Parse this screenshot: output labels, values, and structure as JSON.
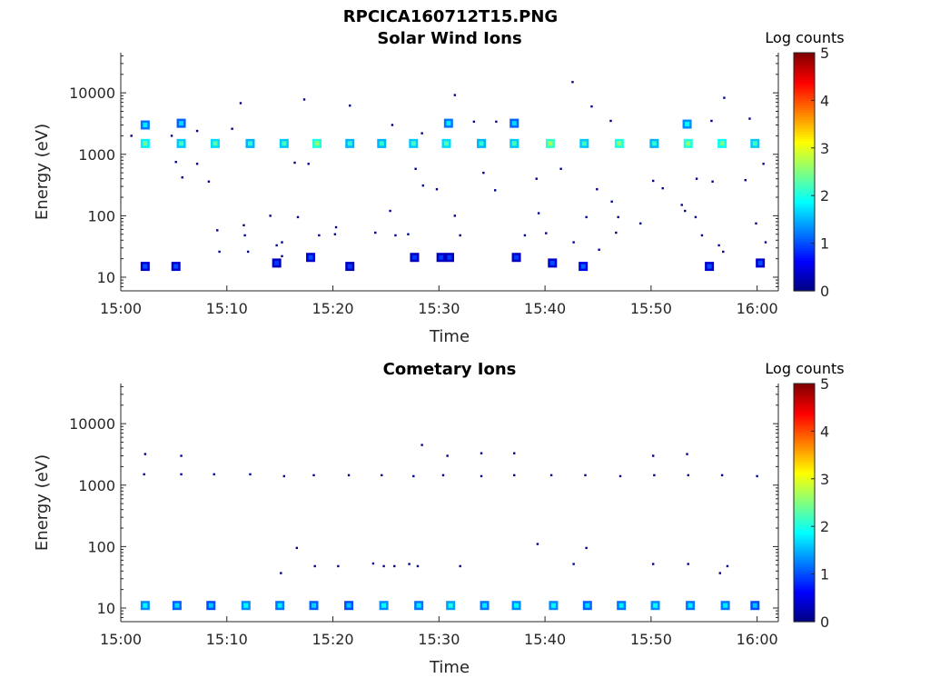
{
  "figure": {
    "filename": "RPCICA160712T15.PNG"
  },
  "colorbar": {
    "label": "Log counts",
    "range": [
      0,
      5
    ],
    "ticks": [
      "0",
      "1",
      "2",
      "3",
      "4",
      "5"
    ],
    "colormap": "jet"
  },
  "chart_data": [
    {
      "type": "heatmap",
      "title": "Solar Wind Ions",
      "xlabel": "Time",
      "ylabel": "Energy (eV)",
      "yscale": "log",
      "xlim": [
        "15:00",
        "16:02"
      ],
      "ylim": [
        6,
        45000
      ],
      "xticks": [
        "15:00",
        "15:10",
        "15:20",
        "15:30",
        "15:40",
        "15:50",
        "16:00"
      ],
      "yticks": [
        "10",
        "100",
        "1000",
        "10000"
      ],
      "cells": [
        {
          "t": 2.3,
          "e": 1500,
          "v": 1.8
        },
        {
          "t": 2.3,
          "e": 3000,
          "v": 1.2
        },
        {
          "t": 5.7,
          "e": 1500,
          "v": 1.6
        },
        {
          "t": 5.7,
          "e": 3200,
          "v": 1.1
        },
        {
          "t": 8.9,
          "e": 1500,
          "v": 1.7
        },
        {
          "t": 12.2,
          "e": 1500,
          "v": 1.5
        },
        {
          "t": 15.4,
          "e": 1500,
          "v": 1.6
        },
        {
          "t": 18.5,
          "e": 1500,
          "v": 2.0
        },
        {
          "t": 21.6,
          "e": 1500,
          "v": 1.5
        },
        {
          "t": 24.6,
          "e": 1500,
          "v": 1.5
        },
        {
          "t": 27.6,
          "e": 1500,
          "v": 1.6
        },
        {
          "t": 30.7,
          "e": 1500,
          "v": 1.7
        },
        {
          "t": 30.9,
          "e": 3200,
          "v": 1.2
        },
        {
          "t": 34.0,
          "e": 1500,
          "v": 1.5
        },
        {
          "t": 37.1,
          "e": 1500,
          "v": 1.6
        },
        {
          "t": 37.1,
          "e": 3200,
          "v": 1.1
        },
        {
          "t": 40.5,
          "e": 1500,
          "v": 2.1
        },
        {
          "t": 43.7,
          "e": 1500,
          "v": 1.6
        },
        {
          "t": 47.0,
          "e": 1500,
          "v": 2.0
        },
        {
          "t": 50.3,
          "e": 1500,
          "v": 1.5
        },
        {
          "t": 53.5,
          "e": 1500,
          "v": 2.0
        },
        {
          "t": 53.4,
          "e": 3100,
          "v": 1.3
        },
        {
          "t": 56.7,
          "e": 1500,
          "v": 1.9
        },
        {
          "t": 59.8,
          "e": 1500,
          "v": 1.6
        },
        {
          "t": 2.3,
          "e": 15,
          "v": 0.4
        },
        {
          "t": 5.2,
          "e": 15,
          "v": 0.4
        },
        {
          "t": 14.7,
          "e": 17,
          "v": 0.3
        },
        {
          "t": 17.9,
          "e": 21,
          "v": 0.4
        },
        {
          "t": 21.6,
          "e": 15,
          "v": 0.3
        },
        {
          "t": 27.7,
          "e": 21,
          "v": 0.3
        },
        {
          "t": 30.2,
          "e": 21,
          "v": 0.3
        },
        {
          "t": 31.0,
          "e": 21,
          "v": 0.3
        },
        {
          "t": 37.3,
          "e": 21,
          "v": 0.3
        },
        {
          "t": 40.7,
          "e": 17,
          "v": 0.4
        },
        {
          "t": 43.6,
          "e": 15,
          "v": 0.5
        },
        {
          "t": 55.5,
          "e": 15,
          "v": 0.4
        },
        {
          "t": 60.3,
          "e": 17,
          "v": 0.4
        }
      ],
      "points": [
        {
          "t": 1.0,
          "e": 2000
        },
        {
          "t": 4.8,
          "e": 2000
        },
        {
          "t": 7.2,
          "e": 2400
        },
        {
          "t": 10.5,
          "e": 2600
        },
        {
          "t": 11.3,
          "e": 6800
        },
        {
          "t": 17.3,
          "e": 7800
        },
        {
          "t": 21.6,
          "e": 6200
        },
        {
          "t": 25.6,
          "e": 3000
        },
        {
          "t": 28.4,
          "e": 2200
        },
        {
          "t": 31.5,
          "e": 9200
        },
        {
          "t": 33.3,
          "e": 3400
        },
        {
          "t": 35.4,
          "e": 3400
        },
        {
          "t": 42.6,
          "e": 15000
        },
        {
          "t": 44.4,
          "e": 6000
        },
        {
          "t": 46.2,
          "e": 3500
        },
        {
          "t": 55.7,
          "e": 3500
        },
        {
          "t": 56.9,
          "e": 8300
        },
        {
          "t": 59.3,
          "e": 3800
        },
        {
          "t": 5.2,
          "e": 750
        },
        {
          "t": 5.8,
          "e": 420
        },
        {
          "t": 8.3,
          "e": 360
        },
        {
          "t": 7.2,
          "e": 700
        },
        {
          "t": 16.4,
          "e": 730
        },
        {
          "t": 17.7,
          "e": 700
        },
        {
          "t": 27.8,
          "e": 580
        },
        {
          "t": 28.5,
          "e": 310
        },
        {
          "t": 29.8,
          "e": 270
        },
        {
          "t": 34.2,
          "e": 500
        },
        {
          "t": 35.3,
          "e": 260
        },
        {
          "t": 39.2,
          "e": 400
        },
        {
          "t": 41.5,
          "e": 580
        },
        {
          "t": 44.9,
          "e": 270
        },
        {
          "t": 46.3,
          "e": 170
        },
        {
          "t": 50.2,
          "e": 370
        },
        {
          "t": 51.1,
          "e": 280
        },
        {
          "t": 52.9,
          "e": 150
        },
        {
          "t": 54.3,
          "e": 400
        },
        {
          "t": 55.8,
          "e": 360
        },
        {
          "t": 58.9,
          "e": 380
        },
        {
          "t": 60.6,
          "e": 700
        },
        {
          "t": 14.1,
          "e": 100
        },
        {
          "t": 16.7,
          "e": 95
        },
        {
          "t": 25.4,
          "e": 120
        },
        {
          "t": 31.5,
          "e": 100
        },
        {
          "t": 39.4,
          "e": 110
        },
        {
          "t": 43.9,
          "e": 95
        },
        {
          "t": 46.9,
          "e": 95
        },
        {
          "t": 49.0,
          "e": 75
        },
        {
          "t": 53.2,
          "e": 120
        },
        {
          "t": 54.2,
          "e": 95
        },
        {
          "t": 59.9,
          "e": 75
        },
        {
          "t": 9.1,
          "e": 58
        },
        {
          "t": 11.6,
          "e": 70
        },
        {
          "t": 20.3,
          "e": 65
        },
        {
          "t": 11.7,
          "e": 48
        },
        {
          "t": 14.7,
          "e": 33
        },
        {
          "t": 15.2,
          "e": 37
        },
        {
          "t": 18.7,
          "e": 48
        },
        {
          "t": 20.2,
          "e": 50
        },
        {
          "t": 24.0,
          "e": 53
        },
        {
          "t": 25.9,
          "e": 48
        },
        {
          "t": 27.1,
          "e": 50
        },
        {
          "t": 32.0,
          "e": 48
        },
        {
          "t": 38.1,
          "e": 48
        },
        {
          "t": 40.1,
          "e": 52
        },
        {
          "t": 42.7,
          "e": 37
        },
        {
          "t": 45.1,
          "e": 28
        },
        {
          "t": 46.7,
          "e": 53
        },
        {
          "t": 54.8,
          "e": 48
        },
        {
          "t": 9.3,
          "e": 26
        },
        {
          "t": 12.0,
          "e": 26
        },
        {
          "t": 15.2,
          "e": 22
        },
        {
          "t": 56.4,
          "e": 33
        },
        {
          "t": 56.8,
          "e": 26
        },
        {
          "t": 60.8,
          "e": 37
        }
      ]
    },
    {
      "type": "heatmap",
      "title": "Cometary Ions",
      "xlabel": "Time",
      "ylabel": "Energy (eV)",
      "yscale": "log",
      "xlim": [
        "15:00",
        "16:02"
      ],
      "ylim": [
        6,
        45000
      ],
      "xticks": [
        "15:00",
        "15:10",
        "15:20",
        "15:30",
        "15:40",
        "15:50",
        "16:00"
      ],
      "yticks": [
        "10",
        "100",
        "1000",
        "10000"
      ],
      "cells": [
        {
          "t": 2.3,
          "e": 11,
          "v": 1.3
        },
        {
          "t": 5.3,
          "e": 11,
          "v": 1.1
        },
        {
          "t": 8.5,
          "e": 11,
          "v": 1.0
        },
        {
          "t": 11.8,
          "e": 11,
          "v": 1.3
        },
        {
          "t": 15.0,
          "e": 11,
          "v": 1.2
        },
        {
          "t": 18.2,
          "e": 11,
          "v": 1.1
        },
        {
          "t": 21.5,
          "e": 11,
          "v": 1.0
        },
        {
          "t": 24.8,
          "e": 11,
          "v": 1.3
        },
        {
          "t": 28.1,
          "e": 11,
          "v": 1.2
        },
        {
          "t": 31.1,
          "e": 11,
          "v": 1.4
        },
        {
          "t": 34.3,
          "e": 11,
          "v": 1.2
        },
        {
          "t": 37.3,
          "e": 11,
          "v": 1.3
        },
        {
          "t": 40.8,
          "e": 11,
          "v": 1.3
        },
        {
          "t": 44.0,
          "e": 11,
          "v": 1.1
        },
        {
          "t": 47.2,
          "e": 11,
          "v": 1.2
        },
        {
          "t": 50.4,
          "e": 11,
          "v": 1.3
        },
        {
          "t": 53.7,
          "e": 11,
          "v": 1.2
        },
        {
          "t": 57.0,
          "e": 11,
          "v": 1.2
        },
        {
          "t": 59.8,
          "e": 11,
          "v": 1.0
        }
      ],
      "points": [
        {
          "t": 2.2,
          "e": 1500
        },
        {
          "t": 2.3,
          "e": 3200
        },
        {
          "t": 5.7,
          "e": 1500
        },
        {
          "t": 5.7,
          "e": 3000
        },
        {
          "t": 8.8,
          "e": 1500
        },
        {
          "t": 12.2,
          "e": 1500
        },
        {
          "t": 15.4,
          "e": 1400
        },
        {
          "t": 18.2,
          "e": 1450
        },
        {
          "t": 21.5,
          "e": 1450
        },
        {
          "t": 24.6,
          "e": 1450
        },
        {
          "t": 27.6,
          "e": 1400
        },
        {
          "t": 30.4,
          "e": 1450
        },
        {
          "t": 34.0,
          "e": 1400
        },
        {
          "t": 37.1,
          "e": 1450
        },
        {
          "t": 40.6,
          "e": 1450
        },
        {
          "t": 43.8,
          "e": 1450
        },
        {
          "t": 47.1,
          "e": 1400
        },
        {
          "t": 50.3,
          "e": 1450
        },
        {
          "t": 53.5,
          "e": 1450
        },
        {
          "t": 56.7,
          "e": 1450
        },
        {
          "t": 60.0,
          "e": 1400
        },
        {
          "t": 28.4,
          "e": 4500
        },
        {
          "t": 30.8,
          "e": 3000
        },
        {
          "t": 34.0,
          "e": 3300
        },
        {
          "t": 37.1,
          "e": 3300
        },
        {
          "t": 50.2,
          "e": 3000
        },
        {
          "t": 53.4,
          "e": 3200
        },
        {
          "t": 39.3,
          "e": 110
        },
        {
          "t": 43.9,
          "e": 95
        },
        {
          "t": 16.6,
          "e": 95
        },
        {
          "t": 15.1,
          "e": 37
        },
        {
          "t": 18.3,
          "e": 48
        },
        {
          "t": 20.5,
          "e": 48
        },
        {
          "t": 23.8,
          "e": 53
        },
        {
          "t": 24.8,
          "e": 48
        },
        {
          "t": 25.8,
          "e": 48
        },
        {
          "t": 27.2,
          "e": 52
        },
        {
          "t": 28.0,
          "e": 48
        },
        {
          "t": 32.0,
          "e": 48
        },
        {
          "t": 42.7,
          "e": 52
        },
        {
          "t": 50.2,
          "e": 52
        },
        {
          "t": 53.5,
          "e": 52
        },
        {
          "t": 56.5,
          "e": 37
        },
        {
          "t": 57.2,
          "e": 48
        }
      ]
    }
  ]
}
